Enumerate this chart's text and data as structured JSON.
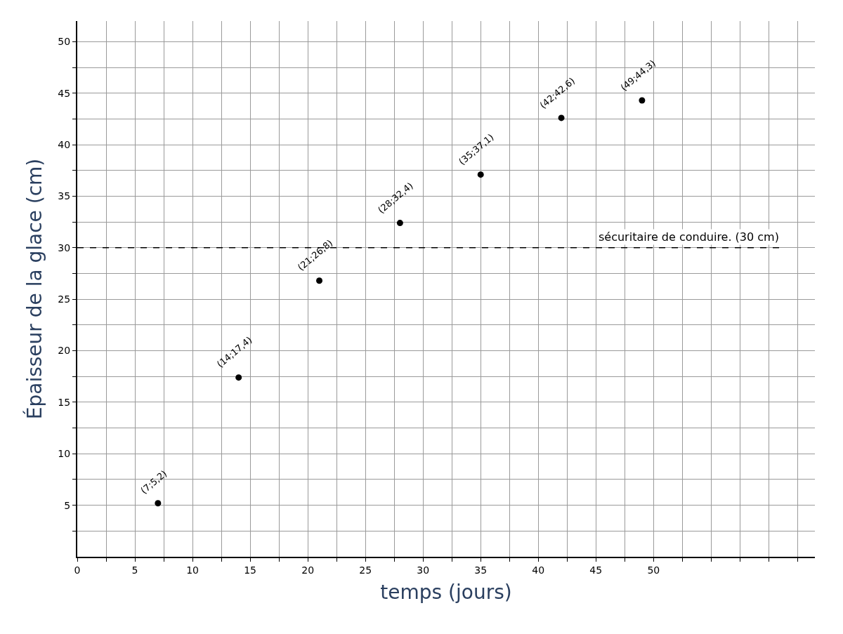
{
  "chart_data": {
    "type": "scatter",
    "xlabel": "temps (jours)",
    "ylabel": "Épaisseur de la glace (cm)",
    "x": [
      7,
      14,
      21,
      28,
      35,
      42,
      49
    ],
    "values": [
      5.2,
      17.4,
      26.8,
      32.4,
      37.1,
      42.6,
      44.3
    ],
    "value_labels": [
      "(7;5,2)",
      "(14;17,4)",
      "(21;26,8)",
      "(28;32,4)",
      "(35;37,1)",
      "(42;42,6)",
      "(49;44,3)"
    ],
    "color": "#000000",
    "marker": "circle",
    "xlim": [
      0,
      64
    ],
    "ylim": [
      0,
      52
    ],
    "xticks": [
      0,
      {
        "value": 2.5,
        "label": null
      },
      5,
      {
        "value": 7.5,
        "label": null
      },
      10,
      {
        "value": 12.5,
        "label": null
      },
      15,
      {
        "value": 17.5,
        "label": null
      },
      20,
      {
        "value": 22.5,
        "label": null
      },
      25,
      {
        "value": 27.5,
        "label": null
      },
      30,
      {
        "value": 32.5,
        "label": null
      },
      35,
      {
        "value": 37.5,
        "label": null
      },
      40,
      {
        "value": 42.5,
        "label": null
      },
      45,
      {
        "value": 47.5,
        "label": null
      },
      50,
      {
        "value": 52.5,
        "label": null
      },
      {
        "value": 55,
        "label": null
      },
      {
        "value": 57.5,
        "label": null
      },
      {
        "value": 60,
        "label": null
      },
      {
        "value": 62.5,
        "label": null
      }
    ],
    "yticks": [
      {
        "value": 2.5,
        "label": null
      },
      5,
      {
        "value": 7.5,
        "label": null
      },
      10,
      {
        "value": 12.5,
        "label": null
      },
      15,
      {
        "value": 17.5,
        "label": null
      },
      20,
      {
        "value": 22.5,
        "label": null
      },
      25,
      {
        "value": 27.5,
        "label": null
      },
      30,
      {
        "value": 32.5,
        "label": null
      },
      35,
      {
        "value": 37.5,
        "label": null
      },
      40,
      {
        "value": 42.5,
        "label": null
      },
      45,
      {
        "value": 47.5,
        "label": null
      },
      50
    ],
    "grid": true,
    "ref_lines": [
      {
        "axis": "y",
        "value": 30,
        "label": "sécuritaire de conduire. (30 cm)",
        "color": "#000000",
        "line_style": "dashed"
      }
    ]
  }
}
